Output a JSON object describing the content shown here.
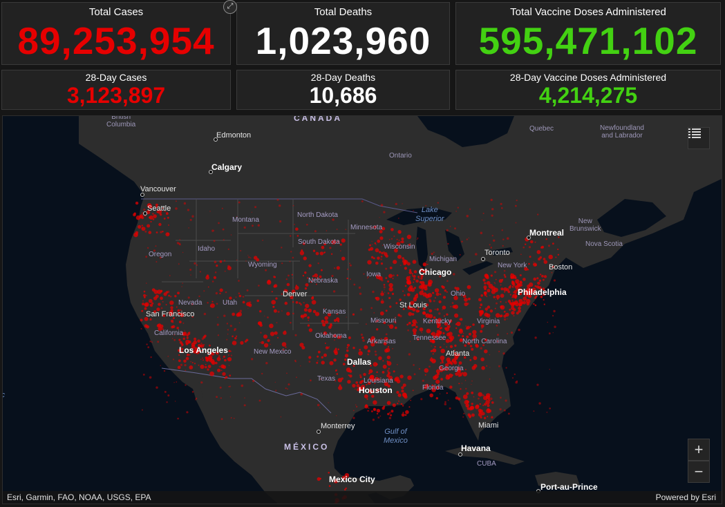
{
  "colors": {
    "red": "#e60000",
    "white": "#ffffff",
    "green": "#43d112",
    "case_dot": "#e60000"
  },
  "stats": {
    "total_cases": {
      "label": "Total Cases",
      "value": "89,253,954"
    },
    "total_deaths": {
      "label": "Total Deaths",
      "value": "1,023,960"
    },
    "total_vaccine": {
      "label": "Total Vaccine Doses Administered",
      "value": "595,471,102"
    },
    "cases_28": {
      "label": "28-Day Cases",
      "value": "3,123,897"
    },
    "deaths_28": {
      "label": "28-Day Deaths",
      "value": "10,686"
    },
    "vaccine_28": {
      "label": "28-Day Vaccine Doses Administered",
      "value": "4,214,275"
    }
  },
  "icons": {
    "expand": "expand-icon",
    "legend": "legend-list-icon",
    "zoom_in": "plus-icon",
    "zoom_out": "minus-icon"
  },
  "map": {
    "countries": {
      "canada": "CANADA",
      "mexico": "MÉXICO",
      "cuba": "CUBA"
    },
    "provinces": {
      "british_columbia": "British\nColumbia",
      "ontario": "Ontario",
      "quebec": "Quebec",
      "newfoundland": "Newfoundland\nand Labrador",
      "new_brunswick": "New\nBrunswick",
      "nova_scotia": "Nova Scotia"
    },
    "states": {
      "montana": "Montana",
      "north_dakota": "North Dakota",
      "minnesota": "Minnesota",
      "south_dakota": "South Dakota",
      "wisconsin": "Wisconsin",
      "michigan": "Michigan",
      "idaho": "Idaho",
      "oregon": "Oregon",
      "wyoming": "Wyoming",
      "nebraska": "Nebraska",
      "iowa": "Iowa",
      "ohio": "Ohio",
      "nevada": "Nevada",
      "utah": "Utah",
      "kansas": "Kansas",
      "missouri": "Missouri",
      "kentucky": "Kentucky",
      "virginia": "Virginia",
      "california": "California",
      "oklahoma": "Oklahoma",
      "arkansas": "Arkansas",
      "tennessee": "Tennessee",
      "north_carolina": "North Carolina",
      "new_mexico": "New Mexico",
      "georgia": "Georgia",
      "texas": "Texas",
      "louisiana": "Louisiana",
      "florida": "Florida",
      "new_york": "New York"
    },
    "cities": {
      "edmonton": "Edmonton",
      "calgary": "Calgary",
      "vancouver": "Vancouver",
      "seattle": "Seattle",
      "montreal": "Montreal",
      "toronto": "Toronto",
      "boston": "Boston",
      "chicago": "Chicago",
      "philadelphia": "Philadelphia",
      "denver": "Denver",
      "st_louis": "St Louis",
      "san_francisco": "San Francisco",
      "los_angeles": "Los Angeles",
      "atlanta": "Atlanta",
      "dallas": "Dallas",
      "houston": "Houston",
      "miami": "Miami",
      "monterrey": "Monterrey",
      "havana": "Havana",
      "mexico_city": "Mexico City",
      "port_au_prince": "Port-au-Prince"
    },
    "water": {
      "lake_superior": "Lake\nSuperior",
      "gulf_of_mexico": "Gulf of\nMexico",
      "pacific_fragment": "fic"
    },
    "attribution": "Esri, Garmin, FAO, NOAA, USGS, EPA",
    "powered_by": "Powered by Esri"
  }
}
